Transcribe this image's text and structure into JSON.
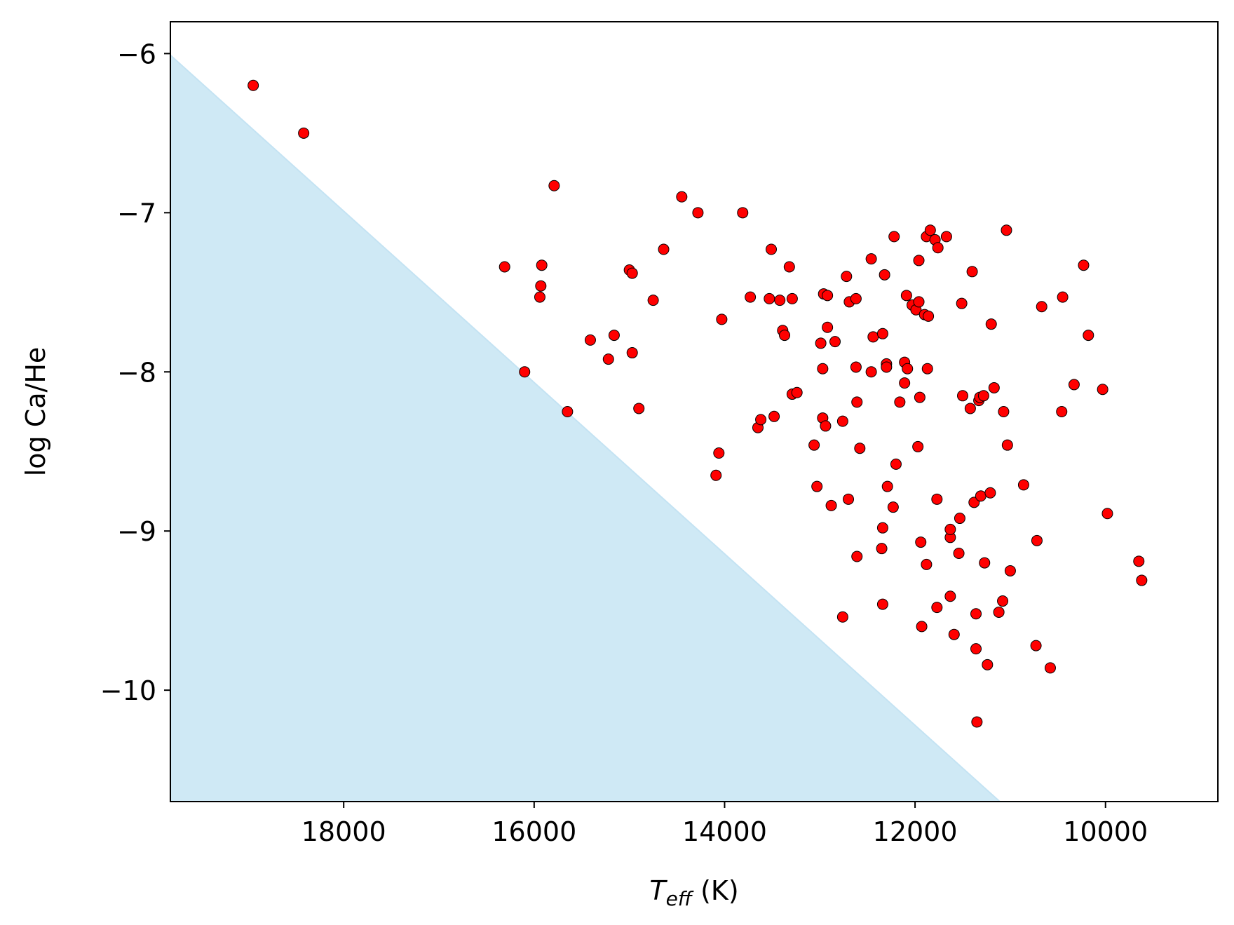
{
  "chart_data": {
    "type": "scatter",
    "title": "",
    "xlabel_main": "T",
    "xlabel_sub": "eff",
    "xlabel_unit": " (K)",
    "ylabel": "log Ca/He",
    "xlim": [
      19820,
      8820
    ],
    "ylim": [
      -10.7,
      -5.8
    ],
    "x_inverted": true,
    "grid": false,
    "xticks": [
      18000,
      16000,
      14000,
      12000,
      10000
    ],
    "xtick_labels": [
      "18000",
      "16000",
      "14000",
      "12000",
      "10000"
    ],
    "yticks": [
      -6,
      -7,
      -8,
      -9,
      -10
    ],
    "ytick_labels": [
      "−6",
      "−7",
      "−8",
      "−9",
      "−10"
    ],
    "region": {
      "label": "",
      "boundary": [
        [
          19820,
          -6.01
        ],
        [
          11110,
          -10.7
        ]
      ],
      "color": "#cfe9f5"
    },
    "marker_color": "#ff0000",
    "marker_edge": "#000000",
    "points": [
      [
        18950,
        -6.2
      ],
      [
        18420,
        -6.5
      ],
      [
        16310,
        -7.34
      ],
      [
        16100,
        -8.0
      ],
      [
        15920,
        -7.33
      ],
      [
        15930,
        -7.46
      ],
      [
        15940,
        -7.53
      ],
      [
        15790,
        -6.83
      ],
      [
        15650,
        -8.25
      ],
      [
        15410,
        -7.8
      ],
      [
        15220,
        -7.92
      ],
      [
        15160,
        -7.77
      ],
      [
        15000,
        -7.36
      ],
      [
        14970,
        -7.38
      ],
      [
        14970,
        -7.88
      ],
      [
        14900,
        -8.23
      ],
      [
        14750,
        -7.55
      ],
      [
        14640,
        -7.23
      ],
      [
        14450,
        -6.9
      ],
      [
        14280,
        -7.0
      ],
      [
        14090,
        -8.65
      ],
      [
        14060,
        -8.51
      ],
      [
        14030,
        -7.67
      ],
      [
        13810,
        -7.0
      ],
      [
        13730,
        -7.53
      ],
      [
        13650,
        -8.35
      ],
      [
        13620,
        -8.3
      ],
      [
        13530,
        -7.54
      ],
      [
        13510,
        -7.23
      ],
      [
        13480,
        -8.28
      ],
      [
        13420,
        -7.55
      ],
      [
        13390,
        -7.74
      ],
      [
        13370,
        -7.77
      ],
      [
        13320,
        -7.34
      ],
      [
        13290,
        -8.14
      ],
      [
        13290,
        -7.54
      ],
      [
        13240,
        -8.13
      ],
      [
        13060,
        -8.46
      ],
      [
        13030,
        -8.72
      ],
      [
        12990,
        -7.82
      ],
      [
        12970,
        -7.98
      ],
      [
        12970,
        -8.29
      ],
      [
        12960,
        -7.51
      ],
      [
        12940,
        -8.34
      ],
      [
        12920,
        -7.52
      ],
      [
        12920,
        -7.72
      ],
      [
        12880,
        -8.84
      ],
      [
        12840,
        -7.81
      ],
      [
        12760,
        -8.31
      ],
      [
        12760,
        -9.54
      ],
      [
        12720,
        -7.4
      ],
      [
        12700,
        -8.8
      ],
      [
        12690,
        -7.56
      ],
      [
        12620,
        -7.54
      ],
      [
        12620,
        -7.97
      ],
      [
        12610,
        -8.19
      ],
      [
        12610,
        -9.16
      ],
      [
        12580,
        -8.48
      ],
      [
        12460,
        -7.29
      ],
      [
        12460,
        -8.0
      ],
      [
        12440,
        -7.78
      ],
      [
        12350,
        -9.11
      ],
      [
        12340,
        -8.98
      ],
      [
        12340,
        -9.46
      ],
      [
        12340,
        -7.76
      ],
      [
        12320,
        -7.39
      ],
      [
        12300,
        -7.95
      ],
      [
        12300,
        -7.97
      ],
      [
        12290,
        -8.72
      ],
      [
        12230,
        -8.85
      ],
      [
        12220,
        -7.15
      ],
      [
        12200,
        -8.58
      ],
      [
        12160,
        -8.19
      ],
      [
        12110,
        -8.07
      ],
      [
        12110,
        -7.94
      ],
      [
        12090,
        -7.52
      ],
      [
        12080,
        -7.98
      ],
      [
        12030,
        -7.58
      ],
      [
        11990,
        -7.61
      ],
      [
        11970,
        -8.47
      ],
      [
        11960,
        -7.3
      ],
      [
        11960,
        -7.56
      ],
      [
        11950,
        -8.16
      ],
      [
        11940,
        -9.07
      ],
      [
        11930,
        -9.6
      ],
      [
        11900,
        -7.64
      ],
      [
        11880,
        -9.21
      ],
      [
        11880,
        -7.15
      ],
      [
        11870,
        -7.98
      ],
      [
        11860,
        -7.65
      ],
      [
        11840,
        -7.11
      ],
      [
        11790,
        -7.17
      ],
      [
        11770,
        -8.8
      ],
      [
        11770,
        -9.48
      ],
      [
        11760,
        -7.22
      ],
      [
        11670,
        -7.15
      ],
      [
        11630,
        -9.41
      ],
      [
        11630,
        -9.04
      ],
      [
        11630,
        -8.99
      ],
      [
        11590,
        -9.65
      ],
      [
        11540,
        -9.14
      ],
      [
        11530,
        -8.92
      ],
      [
        11510,
        -7.57
      ],
      [
        11500,
        -8.15
      ],
      [
        11420,
        -8.23
      ],
      [
        11400,
        -7.37
      ],
      [
        11380,
        -8.82
      ],
      [
        11360,
        -9.74
      ],
      [
        11360,
        -9.52
      ],
      [
        11350,
        -10.2
      ],
      [
        11330,
        -8.18
      ],
      [
        11320,
        -8.16
      ],
      [
        11310,
        -8.78
      ],
      [
        11280,
        -8.15
      ],
      [
        11270,
        -9.2
      ],
      [
        11240,
        -9.84
      ],
      [
        11210,
        -8.76
      ],
      [
        11200,
        -7.7
      ],
      [
        11170,
        -8.1
      ],
      [
        11120,
        -9.51
      ],
      [
        11080,
        -9.44
      ],
      [
        11070,
        -8.25
      ],
      [
        11040,
        -7.11
      ],
      [
        11030,
        -8.46
      ],
      [
        11000,
        -9.25
      ],
      [
        10860,
        -8.71
      ],
      [
        10730,
        -9.72
      ],
      [
        10720,
        -9.06
      ],
      [
        10670,
        -7.59
      ],
      [
        10580,
        -9.86
      ],
      [
        10460,
        -8.25
      ],
      [
        10450,
        -7.53
      ],
      [
        10330,
        -8.08
      ],
      [
        10230,
        -7.33
      ],
      [
        10180,
        -7.77
      ],
      [
        10030,
        -8.11
      ],
      [
        9980,
        -8.89
      ],
      [
        9650,
        -9.19
      ],
      [
        9620,
        -9.31
      ]
    ]
  }
}
